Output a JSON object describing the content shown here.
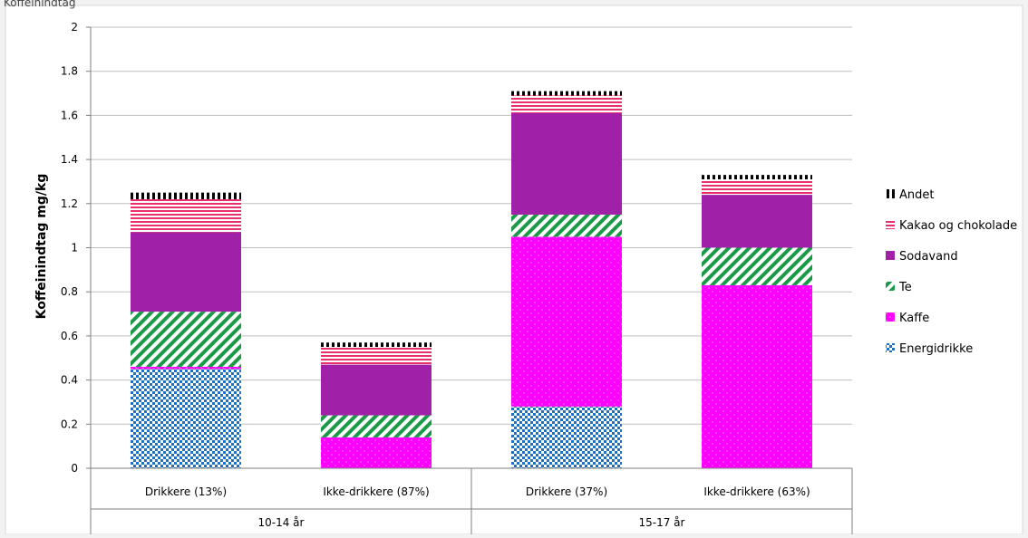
{
  "caption": "Koffeinindtag",
  "chart_data": {
    "type": "bar",
    "stacked": true,
    "title": "",
    "ylabel": "Koffeinindtag mg/kg",
    "xlabel": "",
    "ylim": [
      0,
      2
    ],
    "yticks": [
      "0",
      "0.2",
      "0.4",
      "0.6",
      "0.8",
      "1",
      "1.2",
      "1.4",
      "1.6",
      "1.8",
      "2"
    ],
    "grid": true,
    "legend_position": "right",
    "categories": [
      "Drikkere (13%)",
      "Ikke-drikkere (87%)",
      "Drikkere (37%)",
      "Ikke-drikkere (63%)"
    ],
    "groups": [
      {
        "label": "10-14 år",
        "categories": [
          0,
          1
        ]
      },
      {
        "label": "15-17 år",
        "categories": [
          2,
          3
        ]
      }
    ],
    "series": [
      {
        "name": "Energidrikke",
        "color": "#1f6fbf",
        "pattern": "checker",
        "values": [
          0.45,
          0.0,
          0.28,
          0.0
        ]
      },
      {
        "name": "Kaffe",
        "color": "#ff00ff",
        "pattern": "dots",
        "values": [
          0.01,
          0.14,
          0.77,
          0.83
        ]
      },
      {
        "name": "Te",
        "color": "#1a9a46",
        "pattern": "diagonal",
        "values": [
          0.25,
          0.1,
          0.1,
          0.17
        ]
      },
      {
        "name": "Sodavand",
        "color": "#a020a8",
        "pattern": "solid",
        "values": [
          0.36,
          0.23,
          0.46,
          0.24
        ]
      },
      {
        "name": "Kakao og chokolade",
        "color": "#e8306a",
        "pattern": "hlines",
        "values": [
          0.15,
          0.08,
          0.08,
          0.07
        ]
      },
      {
        "name": "Andet",
        "color": "#000000",
        "pattern": "vdash",
        "values": [
          0.03,
          0.02,
          0.02,
          0.02
        ]
      }
    ]
  }
}
